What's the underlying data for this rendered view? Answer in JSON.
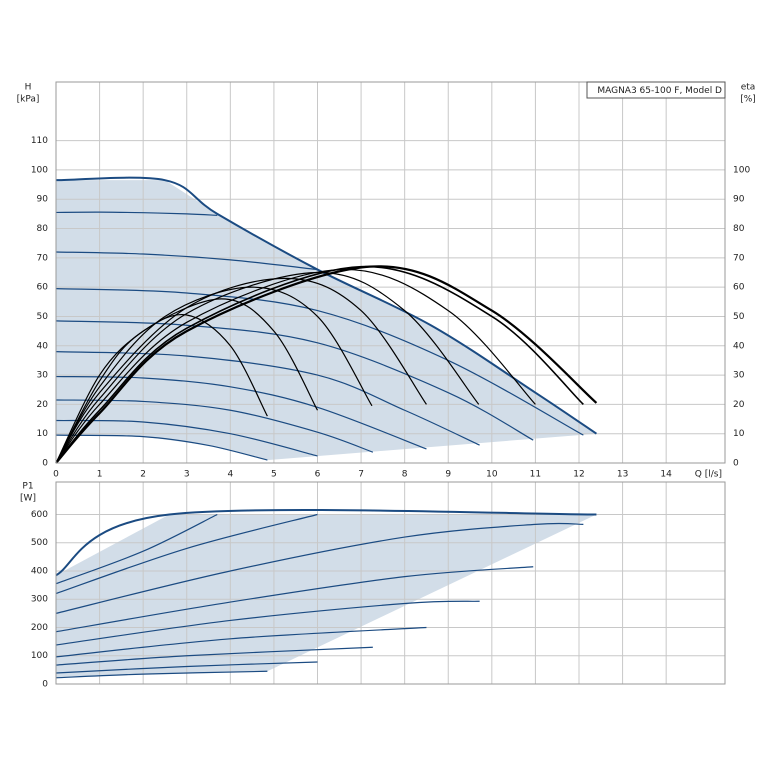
{
  "chart_data": [
    {
      "type": "line",
      "title": "MAGNA3 65-100 F, Model D",
      "ylabel": "H",
      "yunit": "[kPa]",
      "y2label": "eta",
      "y2unit": "[%]",
      "xlabel": "Q [l/s]",
      "xlim": [
        0,
        15.35
      ],
      "xticks": [
        0,
        1,
        2,
        3,
        4,
        5,
        6,
        7,
        8,
        9,
        10,
        11,
        12,
        13,
        14
      ],
      "ylim": [
        0,
        130
      ],
      "yticks": [
        0,
        10,
        20,
        30,
        40,
        50,
        60,
        70,
        80,
        90,
        100,
        110
      ],
      "y2lim": [
        0,
        130
      ],
      "y2ticks": [
        0,
        10,
        20,
        30,
        40,
        50,
        60,
        70,
        80,
        90,
        100
      ],
      "grid": true,
      "fill": "#d2dde8",
      "series": [
        {
          "color": "#1b4b82",
          "width": 2,
          "x": [
            0,
            2.5,
            3.7,
            6,
            8.6,
            11,
            12.4
          ],
          "values": [
            96.5,
            96.5,
            85,
            66,
            47,
            24,
            10
          ]
        },
        {
          "color": "#1b4b82",
          "x": [
            0,
            1,
            2,
            3,
            3.7
          ],
          "values": [
            85.5,
            85.6,
            85.4,
            85,
            84.5
          ]
        },
        {
          "color": "#1b4b82",
          "x": [
            0,
            2,
            4,
            6
          ],
          "values": [
            72,
            71.3,
            69.3,
            66
          ]
        },
        {
          "color": "#1b4b82",
          "x": [
            0,
            3,
            6,
            9,
            12.1
          ],
          "values": [
            59.5,
            58,
            52,
            35,
            9.5
          ]
        },
        {
          "color": "#1b4b82",
          "x": [
            0,
            3,
            6,
            9,
            10.95
          ],
          "values": [
            48.5,
            47,
            41,
            24,
            7.8
          ]
        },
        {
          "color": "#1b4b82",
          "x": [
            0,
            3,
            6,
            8,
            9.72
          ],
          "values": [
            38,
            36.5,
            30,
            18,
            6.1
          ]
        },
        {
          "color": "#1b4b82",
          "x": [
            0,
            2,
            4,
            6,
            8.5
          ],
          "values": [
            29.5,
            29,
            26,
            19,
            4.8
          ]
        },
        {
          "color": "#1b4b82",
          "x": [
            0,
            2,
            4,
            6,
            7.27
          ],
          "values": [
            21.5,
            21,
            18,
            10.5,
            3.7
          ]
        },
        {
          "color": "#1b4b82",
          "x": [
            0,
            2,
            4,
            6
          ],
          "values": [
            14.5,
            14,
            10,
            2.4
          ]
        },
        {
          "color": "#1b4b82",
          "x": [
            0,
            2,
            3.5,
            4.85
          ],
          "values": [
            9.5,
            9,
            6,
            1
          ]
        },
        {
          "color": "#000000",
          "axis": "y2",
          "x": [
            0,
            1,
            2,
            3,
            4,
            4.85
          ],
          "values": [
            0,
            30,
            45,
            50.5,
            40,
            16
          ]
        },
        {
          "color": "#000000",
          "axis": "y2",
          "x": [
            0,
            1,
            2,
            3.8,
            5,
            6
          ],
          "values": [
            0,
            28,
            45,
            56,
            45,
            18
          ]
        },
        {
          "color": "#000000",
          "axis": "y2",
          "x": [
            0,
            1,
            2.5,
            4.5,
            6,
            7.25
          ],
          "values": [
            0,
            26,
            50,
            60,
            50,
            19.5
          ]
        },
        {
          "color": "#000000",
          "axis": "y2",
          "x": [
            0,
            1,
            3,
            5.3,
            7,
            8.5
          ],
          "values": [
            0,
            24,
            53,
            63,
            52,
            20
          ]
        },
        {
          "color": "#000000",
          "axis": "y2",
          "x": [
            0,
            1,
            3,
            6,
            8,
            9.7
          ],
          "values": [
            0,
            22,
            51,
            65,
            52,
            20
          ]
        },
        {
          "color": "#000000",
          "axis": "y2",
          "x": [
            0,
            1,
            3,
            6.5,
            9,
            11
          ],
          "values": [
            0,
            20,
            48,
            66,
            52,
            20
          ]
        },
        {
          "color": "#000000",
          "axis": "y2",
          "width": 1.6,
          "x": [
            0,
            1,
            3,
            7,
            10,
            12.1
          ],
          "values": [
            0,
            18,
            46,
            67,
            50,
            20
          ]
        },
        {
          "color": "#000000",
          "axis": "y2",
          "width": 2.2,
          "x": [
            0,
            1,
            3,
            7.2,
            10,
            12.4
          ],
          "values": [
            0,
            17,
            45,
            67,
            52,
            20.5
          ]
        }
      ]
    },
    {
      "type": "line",
      "ylabel": "P1",
      "yunit": "[W]",
      "xlim": [
        0,
        15.35
      ],
      "ylim": [
        0,
        715
      ],
      "yticks": [
        0,
        100,
        200,
        300,
        400,
        500,
        600
      ],
      "grid": true,
      "fill": "#d2dde8",
      "series": [
        {
          "color": "#1b4b82",
          "width": 2,
          "x": [
            0,
            2.6,
            12.4
          ],
          "values": [
            385,
            600,
            600
          ]
        },
        {
          "color": "#1b4b82",
          "x": [
            0,
            2,
            3.7
          ],
          "values": [
            355,
            470,
            600
          ]
        },
        {
          "color": "#1b4b82",
          "x": [
            0,
            3,
            6
          ],
          "values": [
            320,
            480,
            600
          ]
        },
        {
          "color": "#1b4b82",
          "x": [
            0,
            4,
            8,
            11,
            12.1
          ],
          "values": [
            250,
            400,
            520,
            565,
            565
          ]
        },
        {
          "color": "#1b4b82",
          "x": [
            0,
            4,
            8,
            10.95
          ],
          "values": [
            185,
            290,
            380,
            415
          ]
        },
        {
          "color": "#1b4b82",
          "x": [
            0,
            4,
            8,
            9.72
          ],
          "values": [
            138,
            225,
            285,
            293
          ]
        },
        {
          "color": "#1b4b82",
          "x": [
            0,
            4,
            8.5
          ],
          "values": [
            96,
            160,
            200
          ]
        },
        {
          "color": "#1b4b82",
          "x": [
            0,
            3,
            7.27
          ],
          "values": [
            67,
            100,
            130
          ]
        },
        {
          "color": "#1b4b82",
          "x": [
            0,
            3,
            6
          ],
          "values": [
            39,
            62,
            78
          ]
        },
        {
          "color": "#1b4b82",
          "x": [
            0,
            2,
            4.85
          ],
          "values": [
            22,
            35,
            45
          ]
        }
      ]
    }
  ]
}
